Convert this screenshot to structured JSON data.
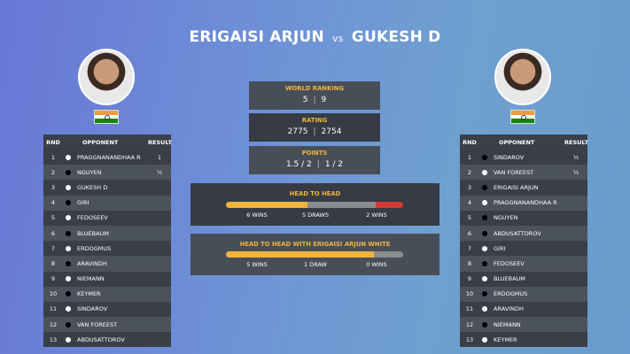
{
  "title": {
    "player1": "ERIGAISI ARJUN",
    "vs": "vs",
    "player2": "GUKESH D"
  },
  "stats": [
    {
      "label": "WORLD RANKING",
      "p1": "5",
      "p2": "9"
    },
    {
      "label": "RATING",
      "p1": "2775",
      "p2": "2754"
    },
    {
      "label": "POINTS",
      "p1": "1.5 / 2",
      "p2": "1 / 2"
    }
  ],
  "head_to_head": {
    "label": "HEAD TO HEAD",
    "p1_wins": 6,
    "draws": 5,
    "p2_wins": 2,
    "p1_text": "6 WINS",
    "draw_text": "5 DRAWS",
    "p2_text": "2 WINS"
  },
  "head_to_head_white": {
    "label": "HEAD TO HEAD WITH ERIGAISI ARJUN WHITE",
    "p1_wins": 5,
    "draws": 1,
    "p2_wins": 0,
    "p1_text": "5 WINS",
    "draw_text": "1 DRAW",
    "p2_text": "0 WINS"
  },
  "colors": {
    "p1_win": "#f0b43c",
    "draw": "#8a8c90",
    "p2_win": "#d23a32",
    "label": "#f0b43c"
  },
  "table_headers": {
    "rnd": "RND",
    "opponent": "OPPONENT",
    "result": "RESULT"
  },
  "left_table": [
    {
      "rnd": "1",
      "color": "white",
      "opponent": "PRAGGNANANDHAA R",
      "result": "1"
    },
    {
      "rnd": "2",
      "color": "black",
      "opponent": "NGUYEN",
      "result": "½"
    },
    {
      "rnd": "3",
      "color": "white",
      "opponent": "GUKESH D",
      "result": ""
    },
    {
      "rnd": "4",
      "color": "black",
      "opponent": "GIRI",
      "result": ""
    },
    {
      "rnd": "5",
      "color": "white",
      "opponent": "FEDOSEEV",
      "result": ""
    },
    {
      "rnd": "6",
      "color": "black",
      "opponent": "BLUEBAUM",
      "result": ""
    },
    {
      "rnd": "7",
      "color": "white",
      "opponent": "ERDOGMUS",
      "result": ""
    },
    {
      "rnd": "8",
      "color": "black",
      "opponent": "ARAVINDH",
      "result": ""
    },
    {
      "rnd": "9",
      "color": "white",
      "opponent": "NIEMANN",
      "result": ""
    },
    {
      "rnd": "10",
      "color": "black",
      "opponent": "KEYMER",
      "result": ""
    },
    {
      "rnd": "11",
      "color": "white",
      "opponent": "SINDAROV",
      "result": ""
    },
    {
      "rnd": "12",
      "color": "black",
      "opponent": "VAN FOREEST",
      "result": ""
    },
    {
      "rnd": "13",
      "color": "white",
      "opponent": "ABDUSATTOROV",
      "result": ""
    }
  ],
  "right_table": [
    {
      "rnd": "1",
      "color": "black",
      "opponent": "SINDAROV",
      "result": "½"
    },
    {
      "rnd": "2",
      "color": "white",
      "opponent": "VAN FOREEST",
      "result": "½"
    },
    {
      "rnd": "3",
      "color": "black",
      "opponent": "ERIGAISI ARJUN",
      "result": ""
    },
    {
      "rnd": "4",
      "color": "white",
      "opponent": "PRAGGNANANDHAA R",
      "result": ""
    },
    {
      "rnd": "5",
      "color": "black",
      "opponent": "NGUYEN",
      "result": ""
    },
    {
      "rnd": "6",
      "color": "black",
      "opponent": "ABDUSATTOROV",
      "result": ""
    },
    {
      "rnd": "7",
      "color": "white",
      "opponent": "GIRI",
      "result": ""
    },
    {
      "rnd": "8",
      "color": "black",
      "opponent": "FEDOSEEV",
      "result": ""
    },
    {
      "rnd": "9",
      "color": "white",
      "opponent": "BLUEBAUM",
      "result": ""
    },
    {
      "rnd": "10",
      "color": "black",
      "opponent": "ERDOGMUS",
      "result": ""
    },
    {
      "rnd": "11",
      "color": "white",
      "opponent": "ARAVINDH",
      "result": ""
    },
    {
      "rnd": "12",
      "color": "black",
      "opponent": "NIEMANN",
      "result": ""
    },
    {
      "rnd": "13",
      "color": "white",
      "opponent": "KEYMER",
      "result": ""
    }
  ]
}
